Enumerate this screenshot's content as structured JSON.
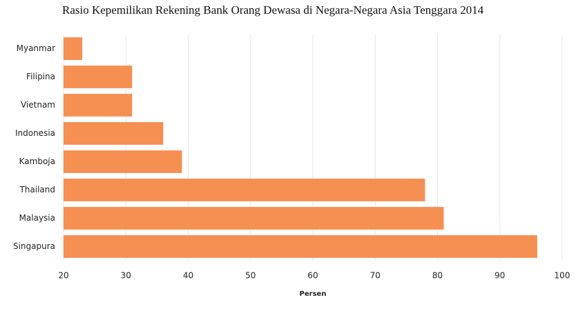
{
  "chart_data": {
    "type": "hbar",
    "title": "Rasio Kepemilikan Rekening Bank Orang Dewasa di Negara-Negara Asia Tenggara 2014",
    "x_label": "Persen",
    "categories": [
      "Myanmar",
      "Filipina",
      "Vietnam",
      "Indonesia",
      "Kamboja",
      "Thailand",
      "Malaysia",
      "Singapura"
    ],
    "values": [
      23,
      31,
      31,
      36,
      39,
      78,
      81,
      96
    ],
    "color": "#f68f52",
    "xlim": [
      20,
      100
    ],
    "xticks": [
      20,
      30,
      40,
      50,
      60,
      70,
      80,
      90,
      100
    ],
    "grid": true
  }
}
